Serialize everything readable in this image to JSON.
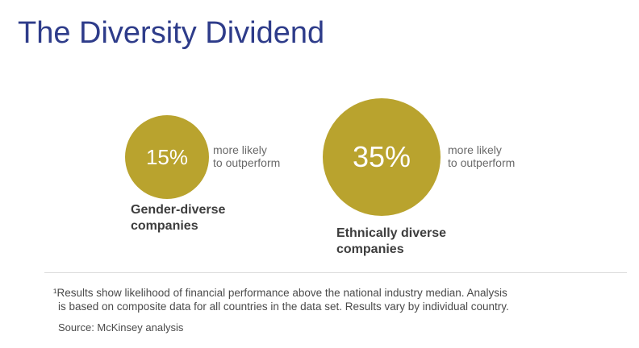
{
  "title": "The Diversity Dividend",
  "colors": {
    "title": "#2e3c8a",
    "circle": "#b9a32e"
  },
  "gender": {
    "value": "15%",
    "note_line1": "more likely",
    "note_line2": "to outperform",
    "label_line1": "Gender-diverse",
    "label_line2": "companies"
  },
  "ethnic": {
    "value": "35%",
    "note_line1": "more likely",
    "note_line2": "to outperform",
    "label_line1": "Ethnically diverse",
    "label_line2": "companies"
  },
  "footnote": {
    "line1": "¹Results show likelihood of financial performance above the national industry median. Analysis",
    "line2": "is based on composite data for all countries in the data set. Results vary by individual country.",
    "source": "Source: McKinsey analysis"
  }
}
